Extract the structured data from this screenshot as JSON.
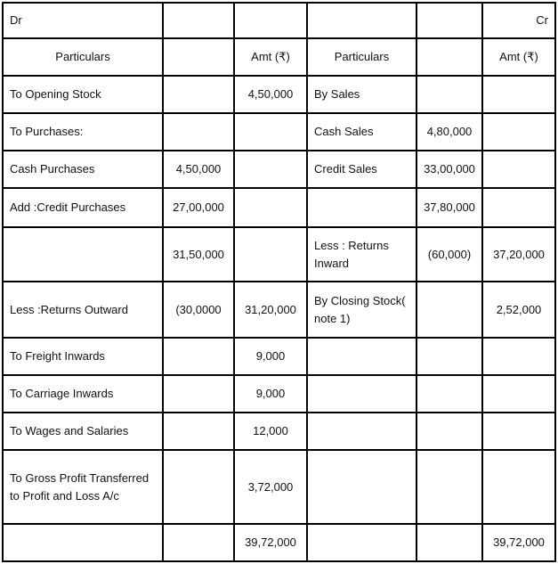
{
  "header": {
    "dr": "Dr",
    "cr": "Cr"
  },
  "columns": [
    "Particulars",
    "",
    "Amt (₹)",
    "Particulars",
    "",
    "Amt (₹)"
  ],
  "rows": [
    [
      "To Opening Stock",
      "",
      "4,50,000",
      "By Sales",
      "",
      ""
    ],
    [
      "To Purchases:",
      "",
      "",
      "Cash Sales",
      "4,80,000",
      ""
    ],
    [
      "Cash Purchases",
      "4,50,000",
      "",
      "Credit Sales",
      "33,00,000",
      ""
    ],
    [
      "Add :Credit Purchases",
      "27,00,000",
      "",
      "",
      "37,80,000",
      ""
    ],
    [
      "",
      "31,50,000",
      "",
      "Less : Returns Inward",
      "(60,000)",
      "37,20,000"
    ],
    [
      "Less :Returns Outward",
      "(30,0000",
      "31,20,000",
      "By Closing Stock( note 1)",
      "",
      "2,52,000"
    ],
    [
      "To Freight Inwards",
      "",
      "9,000",
      "",
      "",
      ""
    ],
    [
      "To Carriage Inwards",
      "",
      "9,000",
      "",
      "",
      ""
    ],
    [
      "To Wages and Salaries",
      "",
      "12,000",
      "",
      "",
      ""
    ],
    [
      "To Gross Profit Transferred to Profit and Loss A/c",
      "",
      "3,72,000",
      "",
      "",
      ""
    ],
    [
      "",
      "",
      "39,72,000",
      "",
      "",
      "39,72,000"
    ]
  ]
}
